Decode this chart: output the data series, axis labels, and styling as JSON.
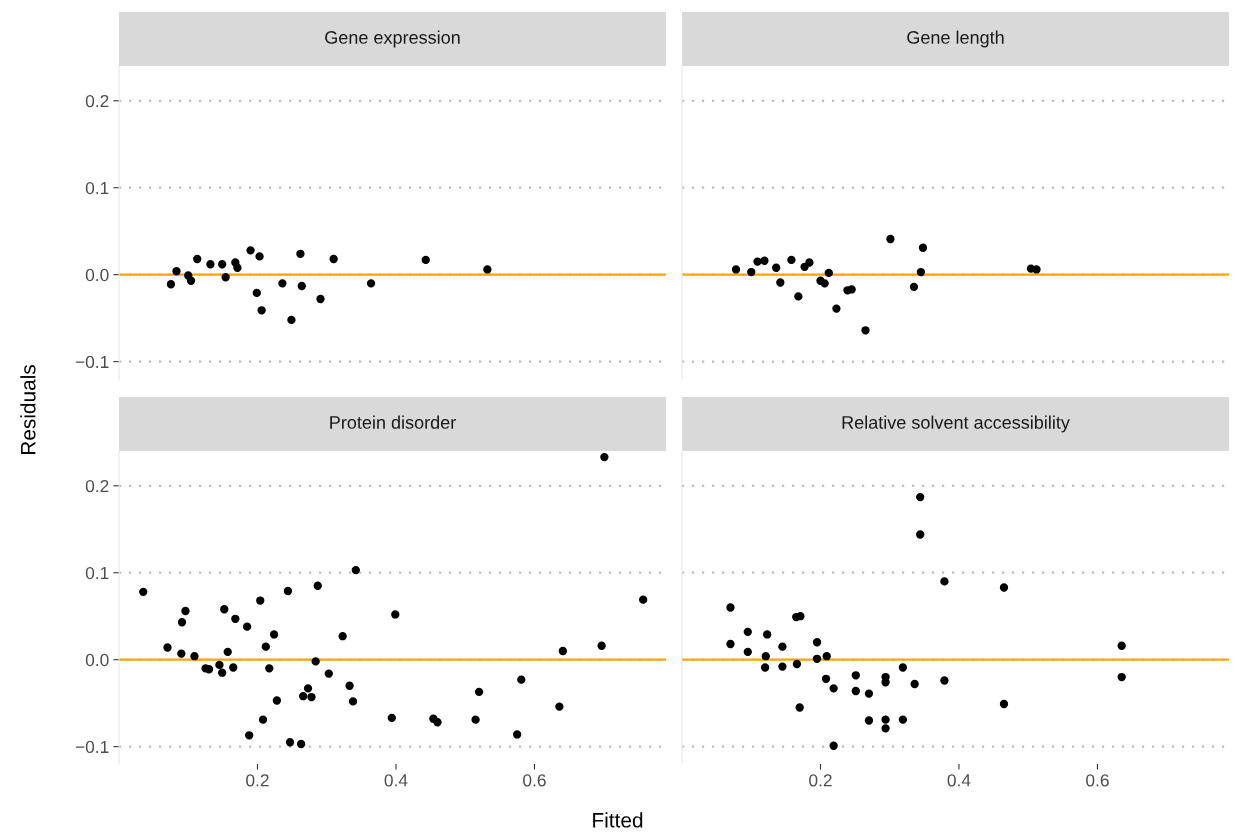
{
  "chart_data": [
    {
      "type": "scatter",
      "title": "Gene expression",
      "ylabel": "Residuals",
      "xlim": [
        0,
        0.79
      ],
      "ylim": [
        -0.12,
        0.24
      ],
      "xticks": [
        0.2,
        0.4,
        0.6
      ],
      "grid": "y",
      "marker": "circle",
      "tick_labels": "y",
      "yticks": [
        {
          "value": -0.1,
          "label": "−0.1"
        },
        {
          "value": 0.0,
          "label": "0.0"
        },
        {
          "value": 0.1,
          "label": "0.1"
        },
        {
          "value": 0.2,
          "label": "0.2"
        }
      ],
      "ref_lines": [
        {
          "axis": "y",
          "value": 0,
          "color": "#ffa500"
        }
      ],
      "series": [
        {
          "color": "#000000",
          "x": [
            0.075,
            0.083,
            0.1,
            0.104,
            0.113,
            0.132,
            0.149,
            0.154,
            0.168,
            0.171,
            0.19,
            0.203,
            0.199,
            0.206,
            0.236,
            0.249,
            0.262,
            0.264,
            0.291,
            0.31,
            0.364,
            0.443,
            0.532
          ],
          "values": [
            -0.011,
            0.004,
            -0.001,
            -0.007,
            0.018,
            0.012,
            0.012,
            -0.003,
            0.014,
            0.008,
            0.028,
            0.021,
            -0.021,
            -0.041,
            -0.01,
            -0.052,
            0.024,
            -0.013,
            -0.028,
            0.018,
            -0.01,
            0.017,
            0.006
          ]
        }
      ]
    },
    {
      "type": "scatter",
      "title": "Gene length",
      "xlim": [
        0,
        0.79
      ],
      "ylim": [
        -0.12,
        0.24
      ],
      "xticks": [
        0.2,
        0.4,
        0.6
      ],
      "yticks": [
        -0.1,
        0.0,
        0.1,
        0.2
      ],
      "grid": "y",
      "marker": "circle",
      "tick_labels": false,
      "ref_lines": [
        {
          "axis": "y",
          "value": 0,
          "color": "#ffa500"
        }
      ],
      "series": [
        {
          "color": "#000000",
          "x": [
            0.078,
            0.1,
            0.109,
            0.119,
            0.136,
            0.142,
            0.158,
            0.168,
            0.177,
            0.184,
            0.2,
            0.206,
            0.212,
            0.223,
            0.239,
            0.245,
            0.265,
            0.301,
            0.335,
            0.345,
            0.348,
            0.504,
            0.512
          ],
          "values": [
            0.006,
            0.003,
            0.015,
            0.016,
            0.008,
            -0.009,
            0.017,
            -0.025,
            0.009,
            0.014,
            -0.007,
            -0.01,
            0.002,
            -0.039,
            -0.018,
            -0.017,
            -0.064,
            0.041,
            -0.014,
            0.003,
            0.031,
            0.007,
            0.006
          ]
        }
      ]
    },
    {
      "type": "scatter",
      "title": "Protein disorder",
      "xlabel": "Fitted",
      "xlim": [
        0,
        0.79
      ],
      "ylim": [
        -0.12,
        0.24
      ],
      "xticks": [
        0.2,
        0.4,
        0.6
      ],
      "yticks": [
        {
          "value": -0.1,
          "label": "−0.1"
        },
        {
          "value": 0.0,
          "label": "0.0"
        },
        {
          "value": 0.1,
          "label": "0.1"
        },
        {
          "value": 0.2,
          "label": "0.2"
        }
      ],
      "grid": "y",
      "marker": "circle",
      "ref_lines": [
        {
          "axis": "y",
          "value": 0,
          "color": "#ffa500"
        }
      ],
      "series": [
        {
          "color": "#000000",
          "x": [
            0.035,
            0.701,
            0.342,
            0.287,
            0.244,
            0.204,
            0.096,
            0.091,
            0.152,
            0.168,
            0.185,
            0.224,
            0.212,
            0.07,
            0.09,
            0.109,
            0.157,
            0.323,
            0.399,
            0.757,
            0.697,
            0.641,
            0.125,
            0.13,
            0.145,
            0.149,
            0.165,
            0.217,
            0.284,
            0.303,
            0.333,
            0.338,
            0.273,
            0.266,
            0.278,
            0.228,
            0.208,
            0.188,
            0.247,
            0.263,
            0.394,
            0.454,
            0.46,
            0.515,
            0.52,
            0.581,
            0.575,
            0.636
          ],
          "values": [
            0.078,
            0.233,
            0.103,
            0.085,
            0.079,
            0.068,
            0.056,
            0.043,
            0.058,
            0.047,
            0.038,
            0.029,
            0.015,
            0.014,
            0.007,
            0.004,
            0.009,
            0.027,
            0.052,
            0.069,
            0.016,
            0.01,
            -0.01,
            -0.011,
            -0.006,
            -0.015,
            -0.009,
            -0.01,
            -0.002,
            -0.016,
            -0.03,
            -0.048,
            -0.033,
            -0.042,
            -0.043,
            -0.047,
            -0.069,
            -0.087,
            -0.095,
            -0.097,
            -0.067,
            -0.068,
            -0.072,
            -0.069,
            -0.037,
            -0.023,
            -0.086,
            -0.054
          ]
        }
      ]
    },
    {
      "type": "scatter",
      "title": "Relative solvent accessibility",
      "xlim": [
        0,
        0.79
      ],
      "ylim": [
        -0.12,
        0.24
      ],
      "xticks": [
        0.2,
        0.4,
        0.6
      ],
      "yticks": [
        -0.1,
        0.0,
        0.1,
        0.2
      ],
      "grid": "y",
      "marker": "circle",
      "tick_labels": "x",
      "ref_lines": [
        {
          "axis": "y",
          "value": 0,
          "color": "#ffa500"
        }
      ],
      "series": [
        {
          "color": "#000000",
          "x": [
            0.344,
            0.344,
            0.379,
            0.465,
            0.07,
            0.07,
            0.095,
            0.095,
            0.123,
            0.121,
            0.12,
            0.145,
            0.145,
            0.165,
            0.171,
            0.166,
            0.195,
            0.195,
            0.209,
            0.17,
            0.208,
            0.219,
            0.251,
            0.251,
            0.27,
            0.294,
            0.294,
            0.319,
            0.336,
            0.379,
            0.27,
            0.294,
            0.294,
            0.319,
            0.219,
            0.465,
            0.635,
            0.635
          ],
          "values": [
            0.187,
            0.144,
            0.09,
            0.083,
            0.06,
            0.018,
            0.032,
            0.009,
            0.029,
            0.004,
            -0.009,
            0.015,
            -0.008,
            0.049,
            0.05,
            -0.005,
            0.02,
            0.001,
            0.004,
            -0.055,
            -0.022,
            -0.033,
            -0.018,
            -0.036,
            -0.039,
            -0.02,
            -0.026,
            -0.009,
            -0.028,
            -0.024,
            -0.07,
            -0.069,
            -0.079,
            -0.069,
            -0.099,
            -0.051,
            0.016,
            -0.02
          ]
        }
      ]
    }
  ]
}
